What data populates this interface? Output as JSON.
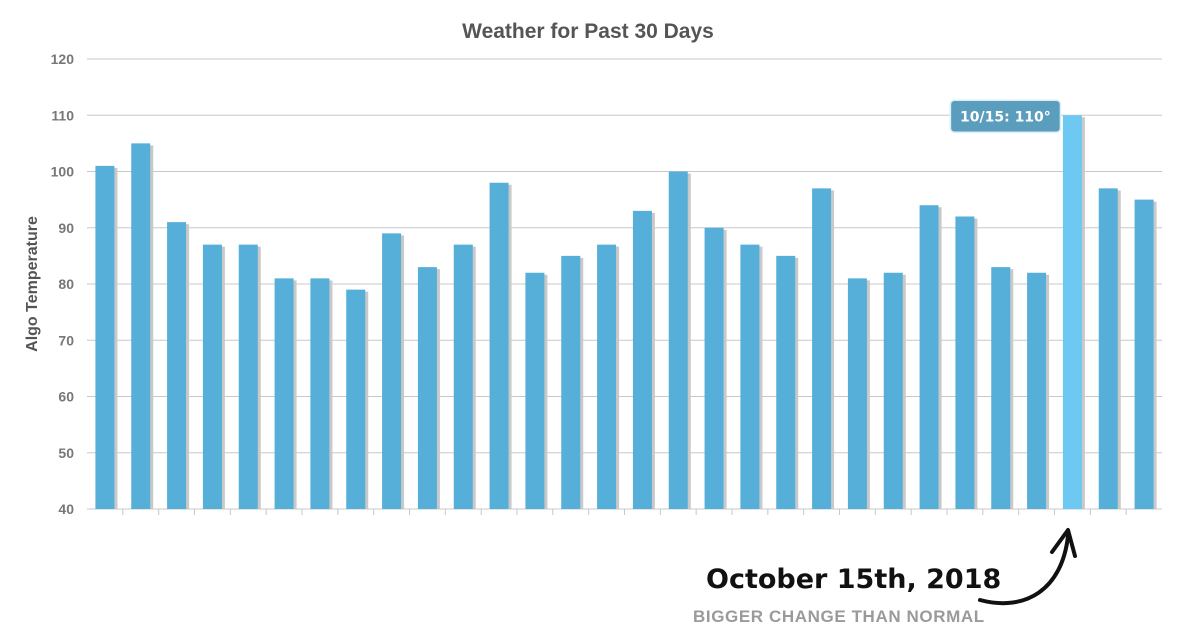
{
  "chart_data": {
    "type": "bar",
    "title": "Weather for Past 30 Days",
    "xlabel": "",
    "ylabel": "Algo Temperature",
    "ylim": [
      40,
      120
    ],
    "yticks": [
      40,
      50,
      60,
      70,
      80,
      90,
      100,
      110,
      120
    ],
    "grid": true,
    "values": [
      101,
      105,
      91,
      87,
      87,
      81,
      81,
      79,
      89,
      83,
      87,
      98,
      82,
      85,
      87,
      93,
      100,
      90,
      87,
      85,
      97,
      81,
      82,
      94,
      92,
      83,
      82,
      110,
      97,
      95
    ],
    "highlight_index": 27,
    "tooltip": "10/15: 110°",
    "colors": {
      "bar": "#55afd8",
      "bar_highlight": "#6dc8f2",
      "bar_shadow": "#c9c9c9",
      "grid": "#c8c8c8",
      "tooltip_bg": "#5a9dbd"
    }
  },
  "annotation": {
    "title": "October 15th, 2018",
    "subtitle": "BIGGER CHANGE THAN NORMAL"
  }
}
